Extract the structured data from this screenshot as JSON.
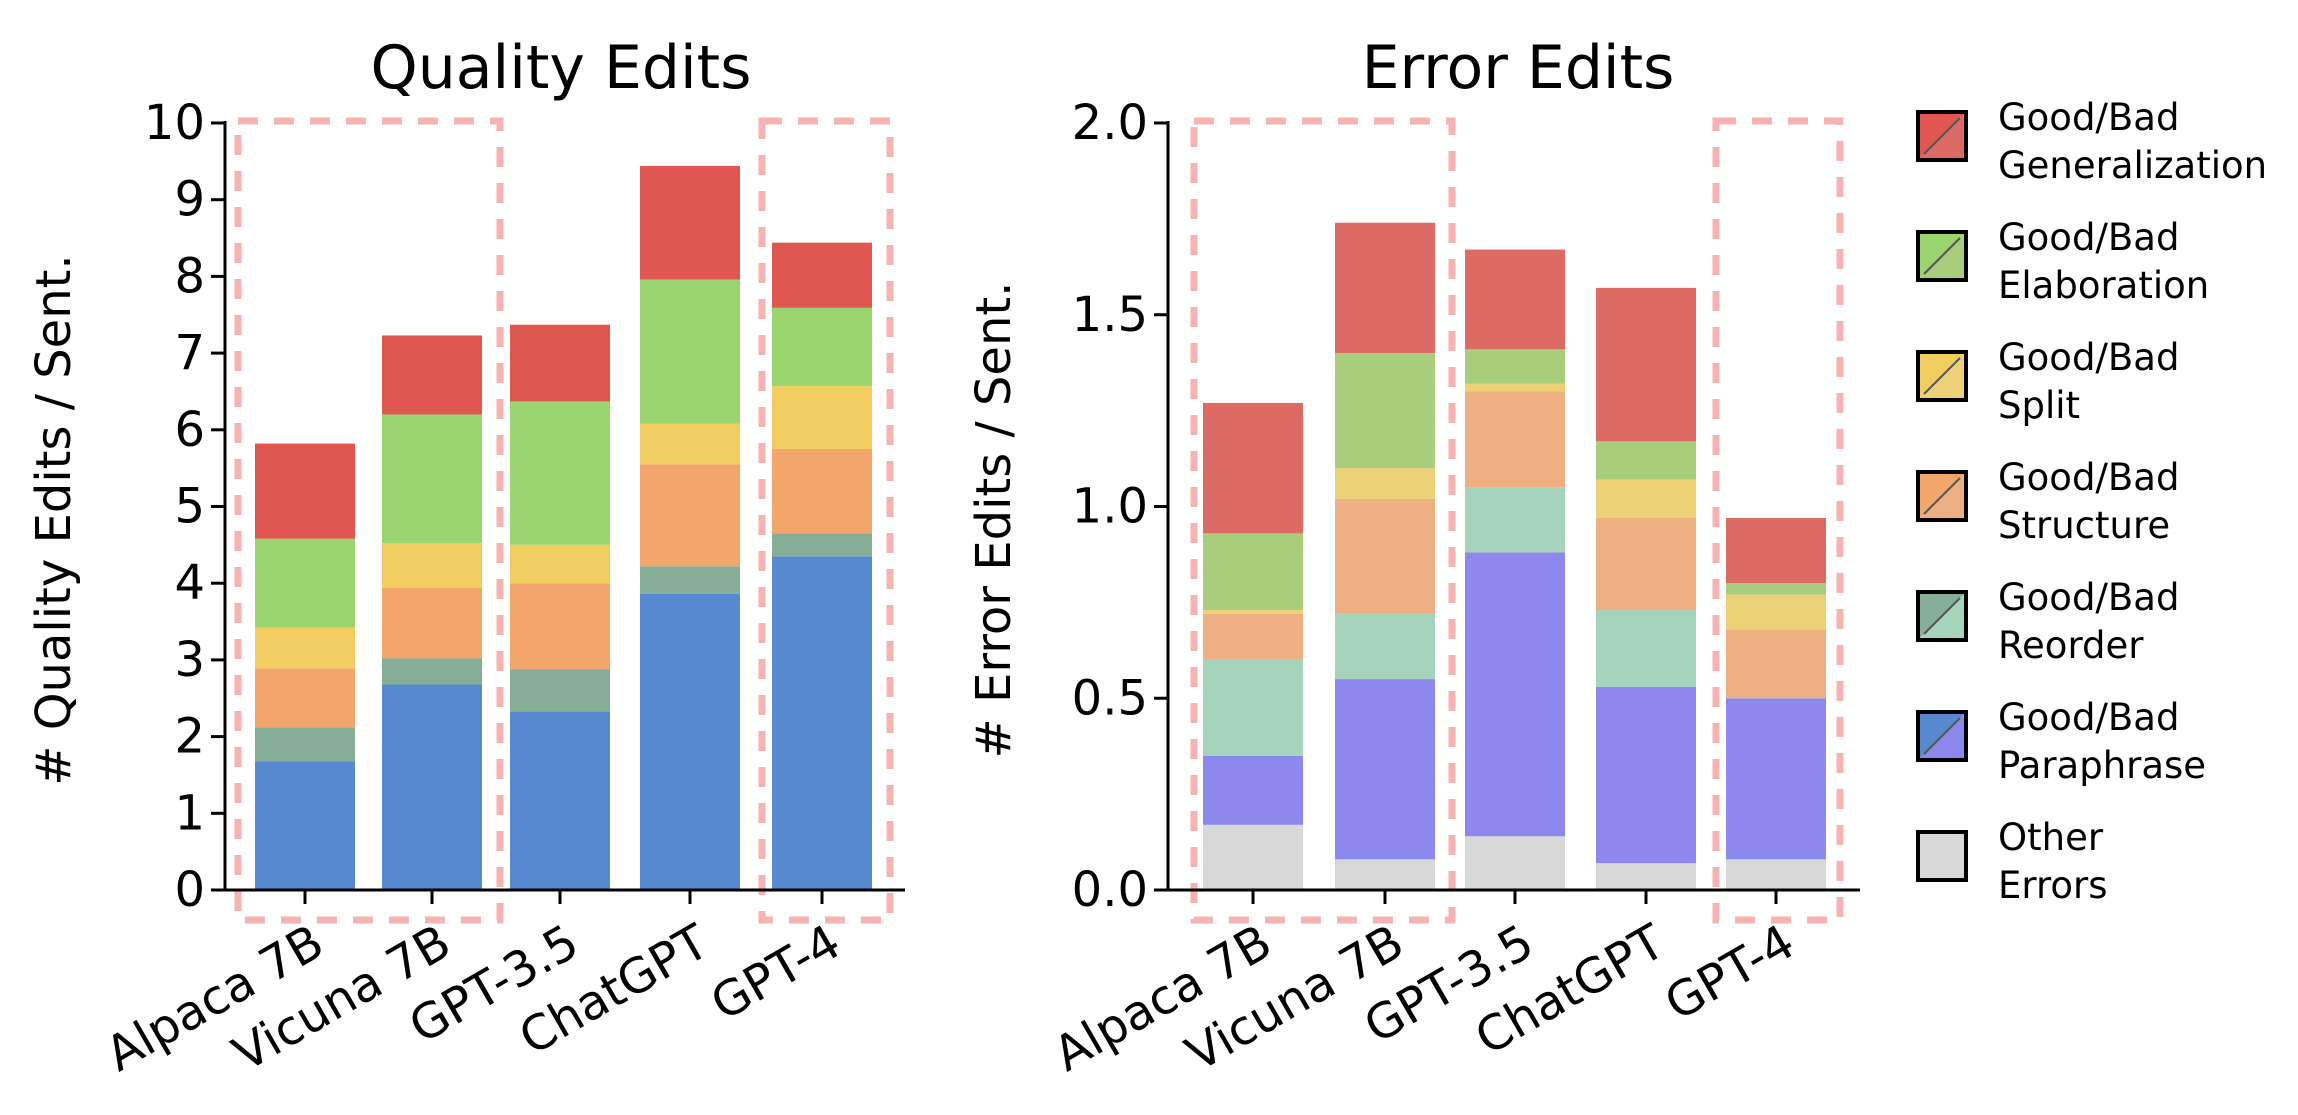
{
  "chart_data": [
    {
      "type": "bar",
      "stacked": true,
      "title": "Quality Edits",
      "xlabel": "",
      "ylabel": "# Quality Edits / Sent.",
      "ylim": [
        0,
        10
      ],
      "yticks": [
        "0",
        "1",
        "2",
        "3",
        "4",
        "5",
        "6",
        "7",
        "8",
        "9",
        "10"
      ],
      "categories": [
        "Alpaca 7B",
        "Vicuna 7B",
        "GPT-3.5",
        "ChatGPT",
        "GPT-4"
      ],
      "highlighted_categories": [
        "Alpaca 7B",
        "Vicuna 7B",
        "GPT-4"
      ],
      "series": [
        {
          "key": "paraphrase",
          "color": "#5689d0",
          "values": [
            1.68,
            2.68,
            2.33,
            3.86,
            4.35
          ]
        },
        {
          "key": "reorder",
          "color": "#86ad96",
          "values": [
            0.44,
            0.34,
            0.55,
            0.36,
            0.3
          ]
        },
        {
          "key": "structure",
          "color": "#f2a66c",
          "values": [
            0.77,
            0.92,
            1.12,
            1.33,
            1.1
          ]
        },
        {
          "key": "split",
          "color": "#f2cd62",
          "values": [
            0.53,
            0.58,
            0.5,
            0.53,
            0.82
          ]
        },
        {
          "key": "elaboration",
          "color": "#9ad56f",
          "values": [
            1.16,
            1.68,
            1.87,
            1.88,
            1.02
          ]
        },
        {
          "key": "generalization",
          "color": "#e05752",
          "values": [
            1.24,
            1.03,
            1.0,
            1.48,
            0.85
          ]
        }
      ]
    },
    {
      "type": "bar",
      "stacked": true,
      "title": "Error Edits",
      "xlabel": "",
      "ylabel": "# Error Edits / Sent.",
      "ylim": [
        0,
        2
      ],
      "yticks": [
        "0.0",
        "0.5",
        "1.0",
        "1.5",
        "2.0"
      ],
      "categories": [
        "Alpaca 7B",
        "Vicuna 7B",
        "GPT-3.5",
        "ChatGPT",
        "GPT-4"
      ],
      "highlighted_categories": [
        "Alpaca 7B",
        "Vicuna 7B",
        "GPT-4"
      ],
      "series": [
        {
          "key": "other",
          "color": "#d8d8d8",
          "values": [
            0.17,
            0.08,
            0.14,
            0.07,
            0.08
          ]
        },
        {
          "key": "paraphrase",
          "color": "#8c88ee",
          "values": [
            0.18,
            0.47,
            0.74,
            0.46,
            0.42
          ]
        },
        {
          "key": "reorder",
          "color": "#a6d3bc",
          "values": [
            0.25,
            0.17,
            0.17,
            0.2,
            0.0
          ]
        },
        {
          "key": "structure",
          "color": "#eeb083",
          "values": [
            0.12,
            0.3,
            0.25,
            0.24,
            0.18
          ]
        },
        {
          "key": "split",
          "color": "#edd176",
          "values": [
            0.01,
            0.08,
            0.02,
            0.1,
            0.09
          ]
        },
        {
          "key": "elaboration",
          "color": "#a8cd7b",
          "values": [
            0.2,
            0.3,
            0.09,
            0.1,
            0.03
          ]
        },
        {
          "key": "generalization",
          "color": "#dc6b66",
          "values": [
            0.34,
            0.34,
            0.26,
            0.4,
            0.17
          ]
        }
      ]
    }
  ],
  "legend": [
    {
      "line1": "Good/Bad",
      "line2": "Generalization",
      "top": "#e05752",
      "bottom": "#dc6b66"
    },
    {
      "line1": "Good/Bad",
      "line2": "Elaboration",
      "top": "#9ad56f",
      "bottom": "#a8cd7b"
    },
    {
      "line1": "Good/Bad",
      "line2": "Split",
      "top": "#f2cd62",
      "bottom": "#edd176"
    },
    {
      "line1": "Good/Bad",
      "line2": "Structure",
      "top": "#f2a66c",
      "bottom": "#eeb083"
    },
    {
      "line1": "Good/Bad",
      "line2": "Reorder",
      "top": "#86ad96",
      "bottom": "#a6d3bc"
    },
    {
      "line1": "Good/Bad",
      "line2": "Paraphrase",
      "top": "#5689d0",
      "bottom": "#8c88ee"
    },
    {
      "line1": "Other",
      "line2": "Errors",
      "top": "#d8d8d8",
      "bottom": "#d8d8d8"
    }
  ],
  "legend_placement": "right",
  "highlight_color": "#f7b2b2"
}
